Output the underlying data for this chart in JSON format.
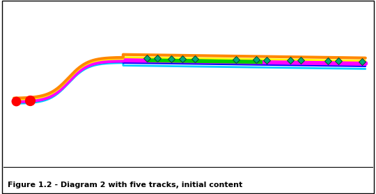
{
  "title": "Figure 1.2 - Diagram 2 with five tracks, initial content",
  "background_color": "#ffffff",
  "figsize": [
    5.4,
    2.8
  ],
  "dpi": 100,
  "xlim": [
    0,
    540
  ],
  "ylim": [
    0,
    230
  ],
  "tracks": [
    {
      "color": "#00ccff",
      "lw": 2.0,
      "yoff": -4
    },
    {
      "color": "#0000ff",
      "lw": 2.0,
      "yoff": -2
    },
    {
      "color": "#ff00ff",
      "lw": 5.0,
      "yoff": 0
    },
    {
      "color": "#ffff00",
      "lw": 2.0,
      "yoff": 2
    },
    {
      "color": "#ff8800",
      "lw": 3.0,
      "yoff": 4
    }
  ],
  "green_segment": {
    "color": "#00cc00",
    "lw": 4.0,
    "yoff": 0,
    "x_start": 210,
    "x_end": 380
  },
  "diamond_positions": [
    210,
    225,
    245,
    262,
    280,
    340,
    370,
    385,
    420,
    435,
    475,
    490,
    525
  ],
  "diamond_color_face": "#00aa77",
  "diamond_color_edge": "#004433",
  "diamond_size": 5,
  "red_stop1_x": 18,
  "red_stop1_y": 0,
  "red_stop1_size": 9,
  "red_stop2_x": 38,
  "red_stop2_y": 0,
  "red_stop2_size": 10,
  "caption": "Figure 1.2 - Diagram 2 with five tracks, initial content",
  "caption_fontsize": 8
}
